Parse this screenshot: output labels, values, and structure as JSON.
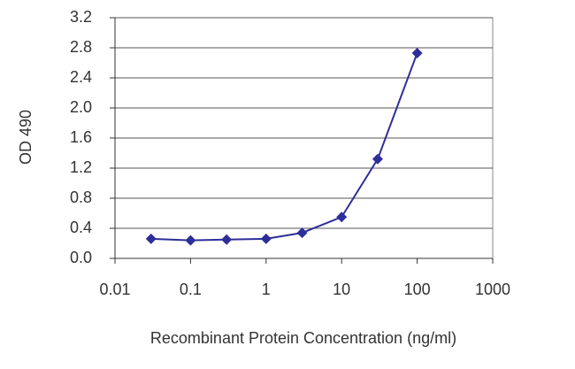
{
  "chart_data": {
    "type": "line",
    "x_label": "Recombinant Protein Concentration (ng/ml)",
    "y_label": "OD 490",
    "x": [
      0.03,
      0.1,
      0.3,
      1,
      3,
      10,
      30,
      100
    ],
    "values": [
      0.26,
      0.24,
      0.25,
      0.26,
      0.34,
      0.55,
      1.32,
      2.73
    ],
    "color": "#2e2e9a",
    "xscale": "log",
    "xlim": [
      0.01,
      1000
    ],
    "xticks": [
      0.01,
      0.1,
      1,
      10,
      100,
      1000
    ],
    "ylim": [
      0,
      3.2
    ],
    "yticks": [
      {
        "value": 0,
        "label": "0.0"
      },
      0.4,
      0.8,
      1.2,
      1.6,
      {
        "value": 2,
        "label": "2.0"
      },
      2.4,
      2.8,
      3.2
    ],
    "grid": true
  }
}
